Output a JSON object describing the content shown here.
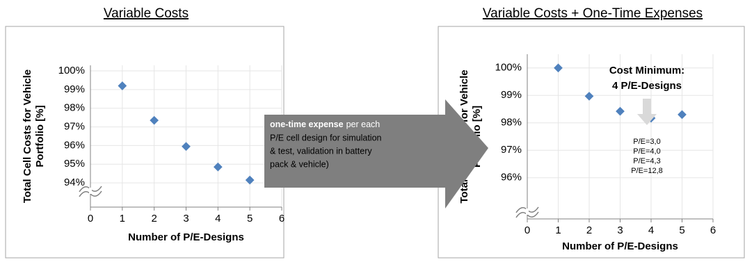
{
  "charts": [
    {
      "chart_data": {
        "type": "scatter",
        "title": "Variable Costs",
        "x_label": "Number of P/E-Designs",
        "y_label": [
          "Total Cell Costs for Vehicle",
          "Portfolio [%]"
        ],
        "x": [
          1,
          2,
          3,
          4,
          5
        ],
        "series": [
          {
            "color": "#4f81bd",
            "values": [
              99.2,
              97.35,
              95.95,
              94.85,
              94.15
            ]
          }
        ],
        "xlim": [
          0,
          6
        ],
        "xticks": [
          0,
          1,
          2,
          3,
          4,
          5,
          6
        ],
        "ylim": [
          92.7,
          100.3
        ],
        "yticks": [
          {
            "value": 94,
            "label": "94%"
          },
          {
            "value": 95,
            "label": "95%"
          },
          {
            "value": 96,
            "label": "96%"
          },
          {
            "value": 97,
            "label": "97%"
          },
          {
            "value": 98,
            "label": "98%"
          },
          {
            "value": 99,
            "label": "99%"
          },
          {
            "value": 100,
            "label": "100%"
          }
        ],
        "grid": true
      }
    },
    {
      "chart_data": {
        "type": "scatter",
        "title": "Variable Costs + One-Time Expenses",
        "x_label": "Number of P/E-Designs",
        "y_label": [
          "Total Cell Costs for Vehicle",
          "Portfolio [%]"
        ],
        "x": [
          1,
          2,
          3,
          4,
          5
        ],
        "series": [
          {
            "color": "#4f81bd",
            "values": [
              100,
              98.97,
              98.42,
              98.17,
              98.3
            ]
          }
        ],
        "xlim": [
          0,
          6
        ],
        "xticks": [
          0,
          1,
          2,
          3,
          4,
          5,
          6
        ],
        "ylim": [
          94.5,
          100.5
        ],
        "yticks": [
          {
            "value": 96,
            "label": "96%"
          },
          {
            "value": 97,
            "label": "97%"
          },
          {
            "value": 98,
            "label": "98%"
          },
          {
            "value": 99,
            "label": "99%"
          },
          {
            "value": 100,
            "label": "100%"
          }
        ],
        "grid": true,
        "annotations": {
          "heading": [
            "Cost Minimum:",
            "4 P/E-Designs"
          ],
          "list": [
            "P/E=3,0",
            "P/E=4,0",
            "P/E=4,3",
            "P/E=12,8"
          ]
        }
      }
    }
  ],
  "callout": {
    "bold": "one-time expense",
    "rest": "per each",
    "lines": [
      "P/E cell design for simulation",
      "& test, validation in battery",
      "pack & vehicle)"
    ]
  }
}
